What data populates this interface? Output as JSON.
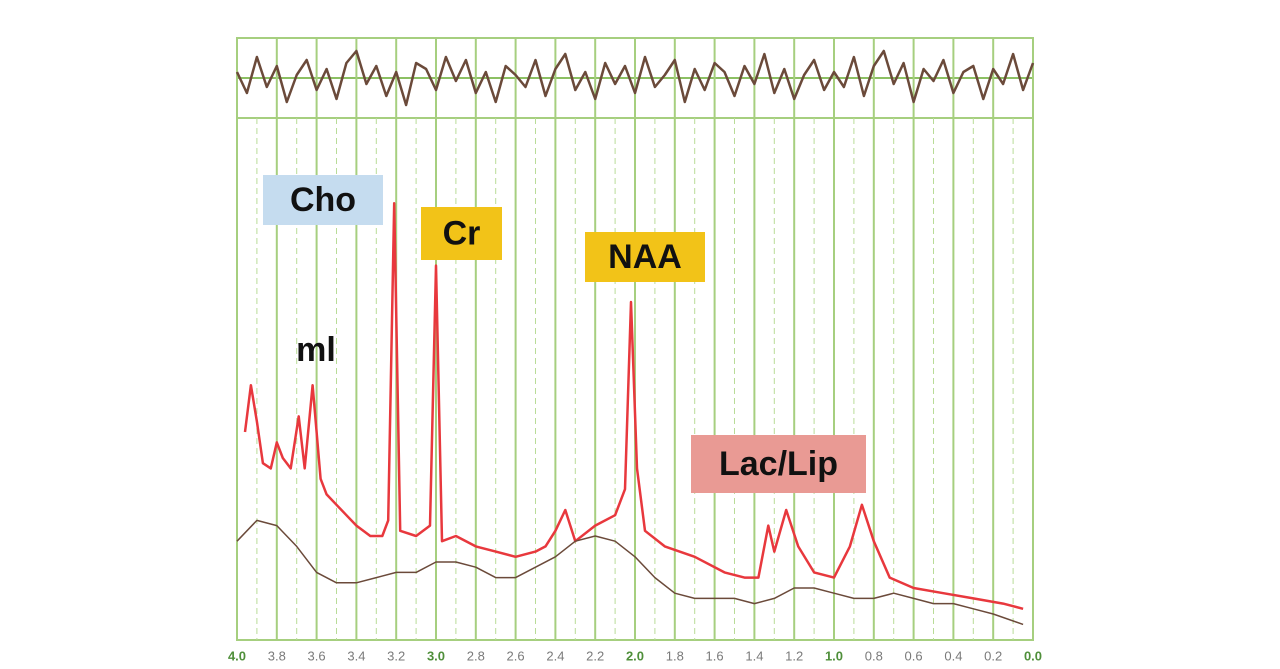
{
  "chart_data": [
    {
      "type": "line",
      "xlim": [
        4,
        0
      ],
      "ylim": [
        -1,
        1
      ],
      "series": [
        {
          "color": "#6b4a3a",
          "x": [
            4,
            3.95,
            3.9,
            3.85,
            3.8,
            3.75,
            3.7,
            3.65,
            3.6,
            3.55,
            3.5,
            3.45,
            3.4,
            3.35,
            3.3,
            3.25,
            3.2,
            3.15,
            3.1,
            3.05,
            3,
            2.95,
            2.9,
            2.85,
            2.8,
            2.75,
            2.7,
            2.65,
            2.6,
            2.55,
            2.5,
            2.45,
            2.4,
            2.35,
            2.3,
            2.25,
            2.2,
            2.15,
            2.1,
            2.05,
            2,
            1.95,
            1.9,
            1.85,
            1.8,
            1.75,
            1.7,
            1.65,
            1.6,
            1.55,
            1.5,
            1.45,
            1.4,
            1.35,
            1.3,
            1.25,
            1.2,
            1.15,
            1.1,
            1.05,
            1,
            0.95,
            0.9,
            0.85,
            0.8,
            0.75,
            0.7,
            0.65,
            0.6,
            0.55,
            0.5,
            0.45,
            0.4,
            0.35,
            0.3,
            0.25,
            0.2,
            0.15,
            0.1,
            0.05,
            0
          ],
          "values": [
            0.2,
            -0.5,
            0.7,
            -0.3,
            0.4,
            -0.8,
            0.1,
            0.6,
            -0.4,
            0.3,
            -0.7,
            0.5,
            0.9,
            -0.2,
            0.4,
            -0.6,
            0.2,
            -0.9,
            0.5,
            0.3,
            -0.4,
            0.7,
            -0.1,
            0.6,
            -0.5,
            0.2,
            -0.8,
            0.4,
            0.1,
            -0.3,
            0.6,
            -0.6,
            0.3,
            0.8,
            -0.4,
            0.2,
            -0.7,
            0.5,
            -0.2,
            0.4,
            -0.5,
            0.7,
            -0.3,
            0.1,
            0.6,
            -0.8,
            0.3,
            -0.4,
            0.5,
            0.2,
            -0.6,
            0.4,
            -0.2,
            0.8,
            -0.5,
            0.3,
            -0.7,
            0.1,
            0.6,
            -0.4,
            0.2,
            -0.3,
            0.7,
            -0.6,
            0.4,
            0.9,
            -0.2,
            0.5,
            -0.8,
            0.3,
            -0.1,
            0.6,
            -0.5,
            0.2,
            0.4,
            -0.7,
            0.3,
            -0.2,
            0.8,
            -0.4,
            0.5
          ]
        }
      ]
    },
    {
      "type": "line",
      "xlim": [
        4,
        0
      ],
      "ylim": [
        0,
        100
      ],
      "xticks": [
        {
          "value": 4,
          "label": "4.0"
        },
        {
          "value": 3.8,
          "label": "3.8"
        },
        {
          "value": 3.6,
          "label": "3.6"
        },
        {
          "value": 3.4,
          "label": "3.4"
        },
        {
          "value": 3.2,
          "label": "3.2"
        },
        {
          "value": 3,
          "label": "3.0"
        },
        {
          "value": 2.8,
          "label": "2.8"
        },
        {
          "value": 2.6,
          "label": "2.6"
        },
        {
          "value": 2.4,
          "label": "2.4"
        },
        {
          "value": 2.2,
          "label": "2.2"
        },
        {
          "value": 2,
          "label": "2.0"
        },
        {
          "value": 1.8,
          "label": "1.8"
        },
        {
          "value": 1.6,
          "label": "1.6"
        },
        {
          "value": 1.4,
          "label": "1.4"
        },
        {
          "value": 1.2,
          "label": "1.2"
        },
        {
          "value": 1,
          "label": "1.0"
        },
        {
          "value": 0.8,
          "label": "0.8"
        },
        {
          "value": 0.6,
          "label": "0.6"
        },
        {
          "value": 0.4,
          "label": "0.4"
        },
        {
          "value": 0.2,
          "label": "0.2"
        },
        {
          "value": 0,
          "label": "0.0"
        }
      ],
      "minor_xticks": [
        3.9,
        3.7,
        3.5,
        3.3,
        3.1,
        2.9,
        2.7,
        2.5,
        2.3,
        2.1,
        1.9,
        1.7,
        1.5,
        1.3,
        1.1,
        0.9,
        0.7,
        0.5,
        0.3,
        0.1
      ],
      "grid": true,
      "series": [
        {
          "color": "#e8383d",
          "x": [
            3.96,
            3.93,
            3.9,
            3.87,
            3.83,
            3.8,
            3.77,
            3.73,
            3.69,
            3.66,
            3.62,
            3.58,
            3.55,
            3.5,
            3.45,
            3.4,
            3.33,
            3.27,
            3.24,
            3.21,
            3.18,
            3.1,
            3.03,
            3,
            2.97,
            2.9,
            2.8,
            2.7,
            2.6,
            2.5,
            2.45,
            2.4,
            2.35,
            2.3,
            2.2,
            2.1,
            2.05,
            2.02,
            1.99,
            1.95,
            1.85,
            1.7,
            1.55,
            1.45,
            1.38,
            1.33,
            1.3,
            1.24,
            1.18,
            1.1,
            1,
            0.92,
            0.86,
            0.8,
            0.72,
            0.6,
            0.45,
            0.3,
            0.15,
            0.05
          ],
          "values": [
            40,
            49,
            42,
            34,
            33,
            38,
            35,
            33,
            43,
            33,
            49,
            31,
            28,
            26,
            24,
            22,
            20,
            20,
            23,
            84,
            21,
            20,
            22,
            72,
            19,
            20,
            18,
            17,
            16,
            17,
            18,
            21,
            25,
            19,
            22,
            24,
            29,
            65,
            33,
            21,
            18,
            16,
            13,
            12,
            12,
            22,
            17,
            25,
            18,
            13,
            12,
            18,
            26,
            19,
            12,
            10,
            9,
            8,
            7,
            6
          ]
        },
        {
          "color": "#6b4a3a",
          "x": [
            4,
            3.9,
            3.8,
            3.7,
            3.6,
            3.5,
            3.4,
            3.3,
            3.2,
            3.1,
            3,
            2.9,
            2.8,
            2.7,
            2.6,
            2.5,
            2.4,
            2.3,
            2.2,
            2.1,
            2,
            1.9,
            1.8,
            1.7,
            1.6,
            1.5,
            1.4,
            1.3,
            1.2,
            1.1,
            1,
            0.9,
            0.8,
            0.7,
            0.6,
            0.5,
            0.4,
            0.3,
            0.2,
            0.05
          ],
          "values": [
            19,
            23,
            22,
            18,
            13,
            11,
            11,
            12,
            13,
            13,
            15,
            15,
            14,
            12,
            12,
            14,
            16,
            19,
            20,
            19,
            16,
            12,
            9,
            8,
            8,
            8,
            7,
            8,
            10,
            10,
            9,
            8,
            8,
            9,
            8,
            7,
            7,
            6,
            5,
            3
          ]
        }
      ],
      "annotations": [
        {
          "text": "Cho",
          "color": "#c5dcef"
        },
        {
          "text": "Cr",
          "color": "#f2c318"
        },
        {
          "text": "NAA",
          "color": "#f2c318"
        },
        {
          "text": "ml"
        },
        {
          "text": "Lac/Lip",
          "color": "#e99a94"
        }
      ]
    }
  ]
}
